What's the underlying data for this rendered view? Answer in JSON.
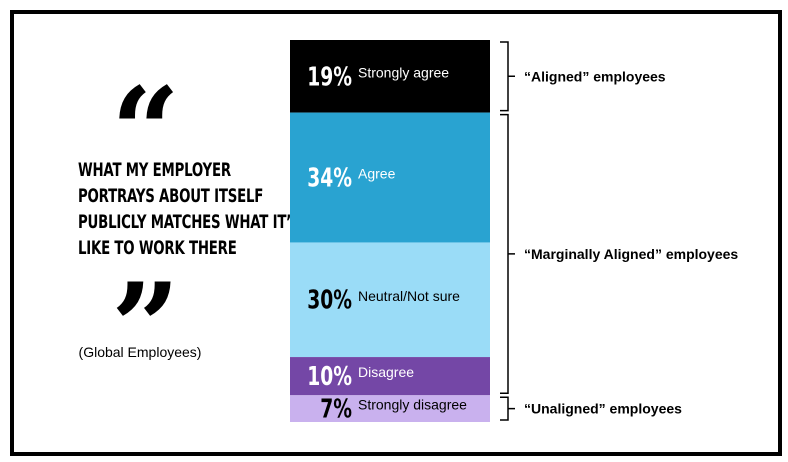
{
  "quote": {
    "open_mark": "“",
    "close_mark": "”",
    "lines": [
      "WHAT MY EMPLOYER",
      "PORTRAYS ABOUT ITSELF",
      "PUBLICLY MATCHES WHAT IT’S",
      "LIKE TO WORK THERE"
    ],
    "audience": "(Global Employees)"
  },
  "chart_data": {
    "type": "bar",
    "orientation": "stacked-vertical",
    "unit": "%",
    "categories": [
      "Strongly agree",
      "Agree",
      "Neutral/Not sure",
      "Disagree",
      "Strongly disagree"
    ],
    "values": [
      19,
      34,
      30,
      10,
      7
    ],
    "value_labels": [
      "19%",
      "34%",
      "30%",
      "10%",
      "7%"
    ],
    "colors": [
      "#000000",
      "#29a3d1",
      "#9adcf7",
      "#7447a6",
      "#c9b1ee"
    ],
    "label_colors": [
      "#ffffff",
      "#ffffff",
      "#000000",
      "#ffffff",
      "#000000"
    ],
    "groups": [
      {
        "label": "“Aligned” employees",
        "from": 0,
        "to": 0
      },
      {
        "label": "“Marginally Aligned” employees",
        "from": 1,
        "to": 3
      },
      {
        "label": "“Unaligned” employees",
        "from": 4,
        "to": 4
      }
    ]
  }
}
